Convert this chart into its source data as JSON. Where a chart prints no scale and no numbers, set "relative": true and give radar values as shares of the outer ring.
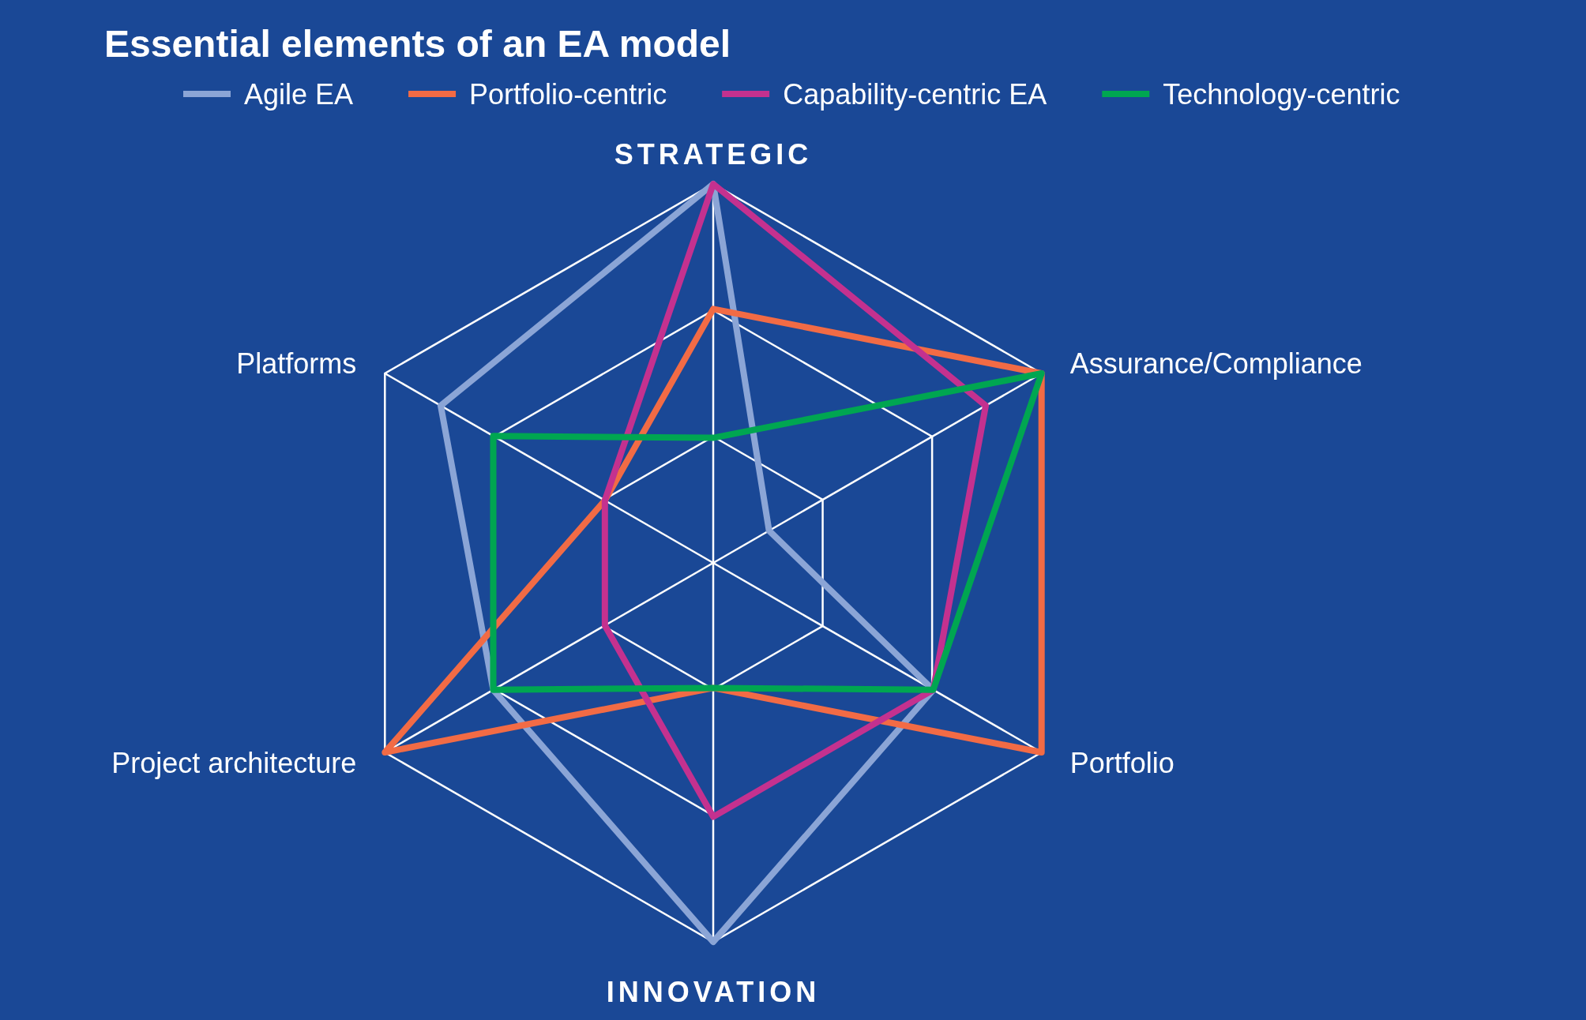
{
  "chart_data": {
    "type": "radar",
    "title": "Essential elements of an EA model",
    "categories": [
      "STRATEGIC",
      "Assurance/Compliance",
      "Portfolio",
      "INNOVATION",
      "Project architecture",
      "Platforms"
    ],
    "relative": true,
    "grid": true,
    "legend": "top",
    "series": [
      {
        "name": "Agile EA",
        "color": "#8ba5d6",
        "values": [
          1,
          0.17,
          0.67,
          1,
          0.67,
          0.83
        ]
      },
      {
        "name": "Portfolio-centric",
        "color": "#f26b45",
        "values": [
          0.67,
          1,
          1,
          0.33,
          1,
          0.33
        ]
      },
      {
        "name": "Capability-centric EA",
        "color": "#c4318f",
        "values": [
          1,
          0.83,
          0.67,
          0.67,
          0.33,
          0.33
        ]
      },
      {
        "name": "Technology-centric",
        "color": "#00a651",
        "values": [
          0.33,
          1,
          0.67,
          0.33,
          0.67,
          0.67
        ]
      }
    ]
  }
}
